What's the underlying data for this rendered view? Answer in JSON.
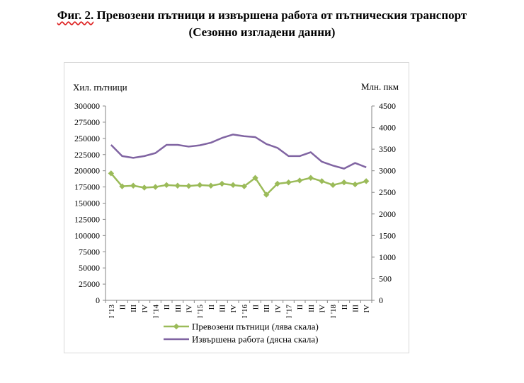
{
  "figure": {
    "prefix": "Фиг. 2.",
    "title_rest": " Превозени пътници и извършена работа от пътническия транспорт",
    "subtitle": "(Сезонно изгладени данни)"
  },
  "chart_data": {
    "type": "line",
    "title": "Превозени пътници и извършена работа от пътническия транспорт",
    "subtitle": "(Сезонно изгладени данни)",
    "left_axis_label": "Хил. пътници",
    "right_axis_label": "Млн. пкм",
    "categories": [
      "I '13",
      "II",
      "III",
      "IV",
      "I '14",
      "II",
      "III",
      "IV",
      "I '15",
      "II",
      "III",
      "IV",
      "I '16",
      "II",
      "III",
      "IV",
      "I '17",
      "II",
      "III",
      "IV",
      "I '18",
      "II",
      "III",
      "IV"
    ],
    "left_axis": {
      "min": 0,
      "max": 300000,
      "step": 25000,
      "ticks": [
        "0",
        "25000",
        "50000",
        "75000",
        "100000",
        "125000",
        "150000",
        "175000",
        "200000",
        "225000",
        "250000",
        "275000",
        "300000"
      ]
    },
    "right_axis": {
      "min": 0,
      "max": 4500,
      "step": 500,
      "ticks": [
        "0",
        "500",
        "1000",
        "1500",
        "2000",
        "2500",
        "3000",
        "3500",
        "4000",
        "4500"
      ]
    },
    "series": [
      {
        "name": "Превозени пътници (лява скала)",
        "axis": "left",
        "color": "#9bbb59",
        "marker": "diamond",
        "values": [
          196000,
          176000,
          177000,
          174000,
          175000,
          178000,
          177000,
          176500,
          178000,
          177000,
          180000,
          178000,
          176000,
          189000,
          163000,
          180000,
          182000,
          185000,
          189000,
          184000,
          178000,
          182000,
          179000,
          184000
        ]
      },
      {
        "name": "Извършена работа (дясна скала)",
        "axis": "right",
        "color": "#8064a2",
        "marker": "none",
        "values": [
          3600,
          3340,
          3300,
          3340,
          3410,
          3600,
          3600,
          3560,
          3590,
          3650,
          3760,
          3840,
          3800,
          3780,
          3620,
          3530,
          3340,
          3340,
          3430,
          3210,
          3120,
          3050,
          3180,
          3080
        ]
      }
    ],
    "legend_position": "bottom",
    "grid": false
  }
}
